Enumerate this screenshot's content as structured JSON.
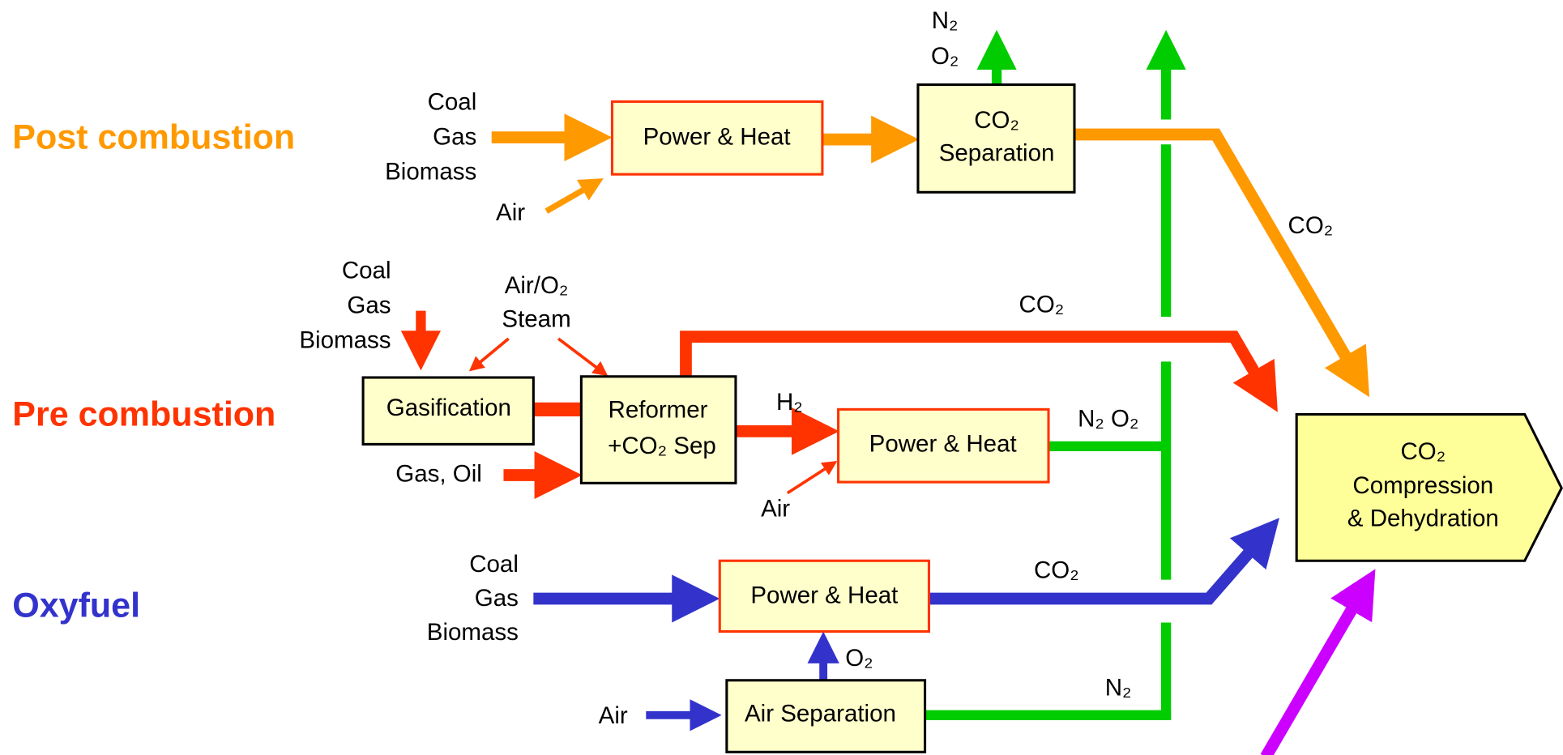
{
  "lanes": [
    "Post combustion",
    "Pre combustion",
    "Oxyfuel"
  ],
  "post": {
    "fuels": [
      "Coal",
      "Gas",
      "Biomass"
    ],
    "air": "Air",
    "power": "Power & Heat",
    "separation": [
      "CO₂",
      "Separation"
    ],
    "vent": [
      "N₂",
      "O₂"
    ],
    "co2": "CO₂"
  },
  "pre": {
    "fuels": [
      "Coal",
      "Gas",
      "Biomass"
    ],
    "oxidant": [
      "Air/O₂",
      "Steam"
    ],
    "gasification": "Gasification",
    "reformer": [
      "Reformer",
      "+CO₂ Sep"
    ],
    "gas_oil": "Gas, Oil",
    "h2": "H₂",
    "air": "Air",
    "power": "Power & Heat",
    "vent": "N₂ O₂",
    "co2": "CO₂"
  },
  "oxyfuel": {
    "fuels": [
      "Coal",
      "Gas",
      "Biomass"
    ],
    "power": "Power & Heat",
    "co2": "CO₂",
    "o2": "O₂",
    "air": "Air",
    "air_separation": "Air Separation",
    "n2": "N₂"
  },
  "compression": [
    "CO₂",
    "Compression",
    "& Dehydration"
  ]
}
